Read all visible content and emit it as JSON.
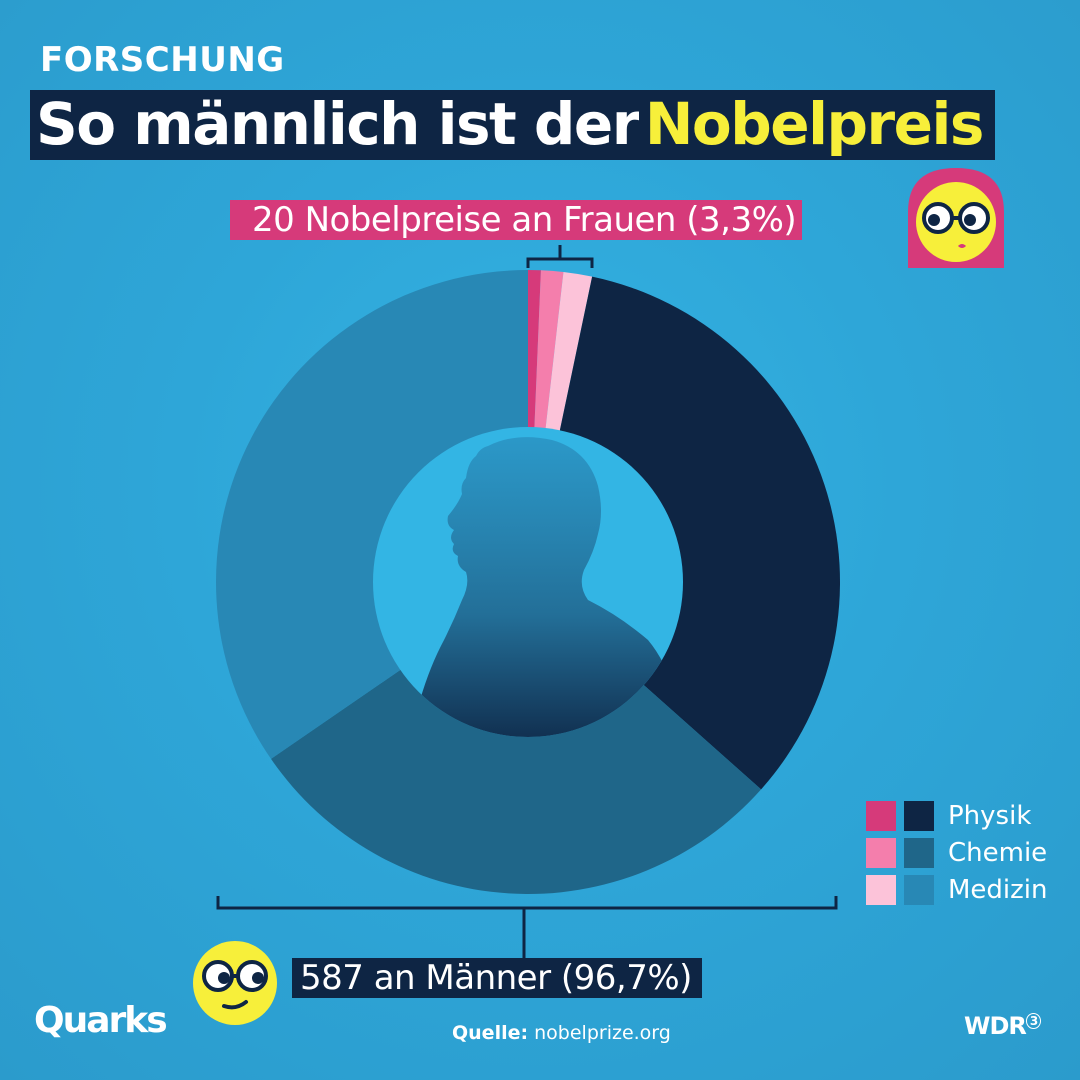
{
  "header": {
    "kicker": "FORSCHUNG",
    "title_white": "So männlich ist der",
    "title_highlight": "Nobelpreis"
  },
  "labels": {
    "women": "20 Nobelpreise an Frauen (3,3%)",
    "men": "587 an Männer (96,7%)"
  },
  "legend": {
    "items": [
      {
        "label": "Physik",
        "women_color": "#d63a7a",
        "men_color": "#0e2544"
      },
      {
        "label": "Chemie",
        "women_color": "#f47eac",
        "men_color": "#1f6689"
      },
      {
        "label": "Medizin",
        "women_color": "#fcc3d9",
        "men_color": "#2888b5"
      }
    ]
  },
  "footer": {
    "brand_left": "Quarks",
    "source_label": "Quelle:",
    "source_value": "nobelprize.org",
    "brand_right": "WDR",
    "brand_right_mark": "3"
  },
  "colors": {
    "background": "#2ea6d8",
    "title_bar": "#0e2544",
    "highlight": "#f7ef3a",
    "women_label_bg": "#d63a7a",
    "face_yellow": "#f7ef3a"
  },
  "icons": [
    "woman-emoji-icon",
    "man-emoji-icon",
    "man-silhouette-icon"
  ],
  "chart_data": {
    "type": "pie",
    "variant": "donut",
    "groups": [
      {
        "name": "Frauen",
        "count": 20,
        "percent": 3.3
      },
      {
        "name": "Männer",
        "count": 587,
        "percent": 96.7
      }
    ],
    "categories": [
      "Physik",
      "Chemie",
      "Medizin"
    ],
    "series": [
      {
        "name": "Frauen",
        "values": [
          4,
          7,
          9
        ]
      },
      {
        "name": "Männer",
        "values": [
          202,
          175,
          210
        ]
      }
    ],
    "slice_order": [
      {
        "group": "Frauen",
        "category": "Physik"
      },
      {
        "group": "Frauen",
        "category": "Chemie"
      },
      {
        "group": "Frauen",
        "category": "Medizin"
      },
      {
        "group": "Männer",
        "category": "Physik"
      },
      {
        "group": "Männer",
        "category": "Chemie"
      },
      {
        "group": "Männer",
        "category": "Medizin"
      }
    ],
    "legend_position": "bottom-right"
  }
}
